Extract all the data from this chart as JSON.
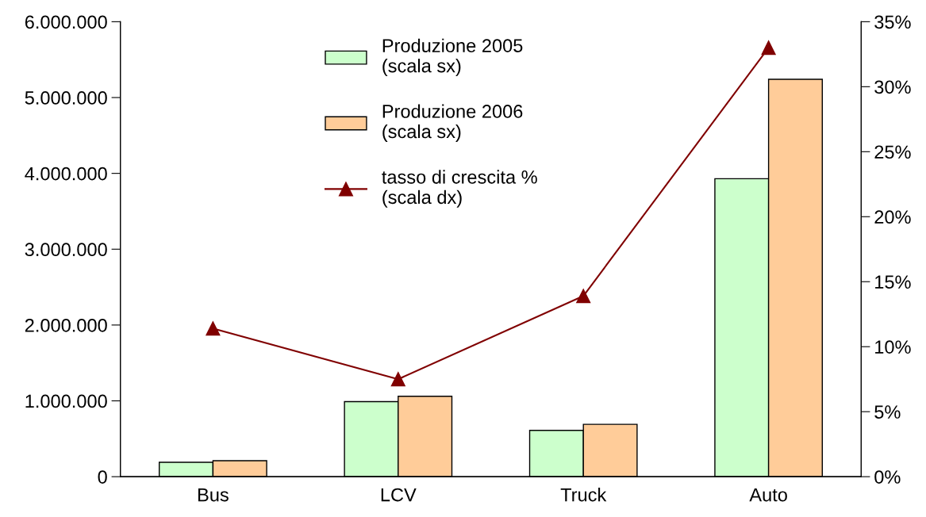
{
  "chart_data": {
    "type": "bar",
    "categories": [
      "Bus",
      "LCV",
      "Truck",
      "Auto"
    ],
    "series": [
      {
        "name": "Produzione 2005\n(scala sx)",
        "color": "#ccffcc",
        "values": [
          190000,
          990000,
          610000,
          3930000
        ]
      },
      {
        "name": "Produzione 2006\n(scala sx)",
        "color": "#ffcc99",
        "values": [
          210000,
          1060000,
          690000,
          5240000
        ]
      },
      {
        "name": "tasso di crescita %\n(scala dx)",
        "type": "line",
        "axis": "y2",
        "color": "#800000",
        "marker": "triangle",
        "line_style": "solid",
        "values": [
          11.4,
          7.5,
          13.9,
          33.0
        ]
      }
    ],
    "ylim": [
      0,
      6000000
    ],
    "yticks": [
      {
        "value": 0,
        "label": "0"
      },
      {
        "value": 1000000,
        "label": "1.000.000"
      },
      {
        "value": 2000000,
        "label": "2.000.000"
      },
      {
        "value": 3000000,
        "label": "3.000.000"
      },
      {
        "value": 4000000,
        "label": "4.000.000"
      },
      {
        "value": 5000000,
        "label": "5.000.000"
      },
      {
        "value": 6000000,
        "label": "6.000.000"
      }
    ],
    "y2lim": [
      0,
      35
    ],
    "y2ticks": [
      {
        "value": 0,
        "label": "0%"
      },
      {
        "value": 5,
        "label": "5%"
      },
      {
        "value": 10,
        "label": "10%"
      },
      {
        "value": 15,
        "label": "15%"
      },
      {
        "value": 20,
        "label": "20%"
      },
      {
        "value": 25,
        "label": "25%"
      },
      {
        "value": 30,
        "label": "30%"
      },
      {
        "value": 35,
        "label": "35%"
      }
    ],
    "grid": false,
    "legend": "top"
  }
}
